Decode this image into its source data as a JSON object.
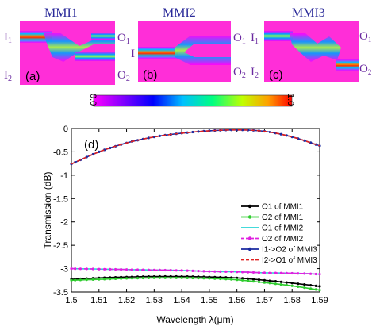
{
  "top_panels": {
    "panels": [
      {
        "title": "MMI1",
        "label": "(a)",
        "inputs": [
          "I",
          "I"
        ],
        "input_subs": [
          "1",
          "2"
        ],
        "outputs": [
          "O",
          "O"
        ],
        "output_subs": [
          "1",
          "2"
        ]
      },
      {
        "title": "MMI2",
        "label": "(b)",
        "inputs": [
          "I"
        ],
        "input_subs": [
          ""
        ],
        "outputs": [
          "O",
          "O"
        ],
        "output_subs": [
          "1",
          "2"
        ]
      },
      {
        "title": "MMI3",
        "label": "(c)",
        "inputs": [
          "I",
          "I"
        ],
        "input_subs": [
          "1",
          "2"
        ],
        "outputs": [
          "O",
          "O"
        ],
        "output_subs": [
          "1",
          "2"
        ]
      }
    ],
    "colorbar": {
      "min_label": "0.0",
      "max_label": "1.0"
    }
  },
  "chart_data": {
    "type": "line",
    "panel_label": "(d)",
    "xlabel": "Wavelength λ(μm)",
    "ylabel": "Transmission (dB)",
    "xlim": [
      1.5,
      1.59
    ],
    "ylim": [
      -3.5,
      0
    ],
    "xticks": [
      "1.5",
      "1.51",
      "1.52",
      "1.53",
      "1.54",
      "1.55",
      "1.56",
      "1.57",
      "1.58",
      "1.59"
    ],
    "yticks": [
      "0",
      "-0.5",
      "-1",
      "-1.5",
      "-2",
      "-2.5",
      "-3",
      "-3.5"
    ],
    "grid": false,
    "legend_position": "right",
    "x": [
      1.5,
      1.51,
      1.52,
      1.53,
      1.54,
      1.55,
      1.56,
      1.57,
      1.58,
      1.59
    ],
    "series": [
      {
        "name": "O1 of MMI1",
        "color": "#000000",
        "marker": "dot",
        "dash": "solid",
        "values": [
          -3.23,
          -3.2,
          -3.18,
          -3.17,
          -3.17,
          -3.18,
          -3.2,
          -3.25,
          -3.31,
          -3.38
        ]
      },
      {
        "name": "O2 of MMI1",
        "color": "#2ecc2e",
        "marker": "dot",
        "dash": "solid",
        "values": [
          -3.25,
          -3.23,
          -3.21,
          -3.2,
          -3.2,
          -3.21,
          -3.24,
          -3.3,
          -3.37,
          -3.46
        ]
      },
      {
        "name": "O1 of MMI2",
        "color": "#2ad4d4",
        "marker": "none",
        "dash": "solid",
        "values": [
          -3.0,
          -3.01,
          -3.02,
          -3.03,
          -3.04,
          -3.06,
          -3.07,
          -3.09,
          -3.1,
          -3.12
        ]
      },
      {
        "name": "O2 of MMI2",
        "color": "#e020e0",
        "marker": "dot",
        "dash": "dashed",
        "values": [
          -3.0,
          -3.01,
          -3.02,
          -3.03,
          -3.04,
          -3.06,
          -3.07,
          -3.09,
          -3.1,
          -3.12
        ]
      },
      {
        "name": "I1->O2 of MMI3",
        "color": "#1a2aa0",
        "marker": "dot",
        "dash": "solid",
        "values": [
          -0.76,
          -0.5,
          -0.31,
          -0.18,
          -0.1,
          -0.05,
          -0.03,
          -0.06,
          -0.18,
          -0.37
        ]
      },
      {
        "name": "I2->O1 of MMI3",
        "color": "#e02020",
        "marker": "none",
        "dash": "dashed",
        "values": [
          -0.76,
          -0.5,
          -0.31,
          -0.18,
          -0.1,
          -0.05,
          -0.03,
          -0.06,
          -0.18,
          -0.37
        ]
      }
    ]
  }
}
